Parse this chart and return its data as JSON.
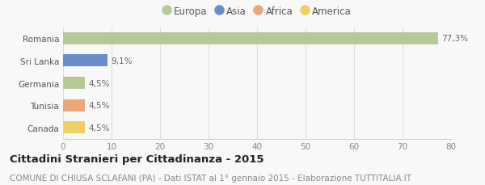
{
  "categories": [
    "Romania",
    "Sri Lanka",
    "Germania",
    "Tunisia",
    "Canada"
  ],
  "values": [
    77.3,
    9.1,
    4.5,
    4.5,
    4.5
  ],
  "labels": [
    "77,3%",
    "9,1%",
    "4,5%",
    "4,5%",
    "4,5%"
  ],
  "colors": [
    "#b5c994",
    "#6a8fc8",
    "#b5c994",
    "#e8a87c",
    "#f0d060"
  ],
  "legend_items": [
    {
      "label": "Europa",
      "color": "#b5c994"
    },
    {
      "label": "Asia",
      "color": "#6a8fc8"
    },
    {
      "label": "Africa",
      "color": "#e8a87c"
    },
    {
      "label": "America",
      "color": "#f0d060"
    }
  ],
  "xlim": [
    0,
    80
  ],
  "xticks": [
    0,
    10,
    20,
    30,
    40,
    50,
    60,
    70,
    80
  ],
  "title": "Cittadini Stranieri per Cittadinanza - 2015",
  "subtitle": "COMUNE DI CHIUSA SCLAFANI (PA) - Dati ISTAT al 1° gennaio 2015 - Elaborazione TUTTITALIA.IT",
  "background_color": "#f8f8f8",
  "bar_height": 0.55,
  "title_fontsize": 9.5,
  "subtitle_fontsize": 7.5,
  "label_fontsize": 7.5,
  "tick_fontsize": 7.5,
  "legend_fontsize": 8.5
}
